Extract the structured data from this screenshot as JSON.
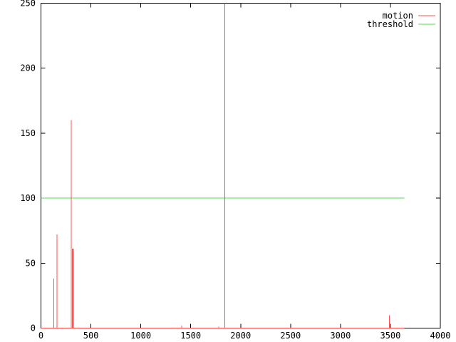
{
  "window": {
    "background": "#ffffff"
  },
  "colors": {
    "motion_red": "#ff5050",
    "threshold_green": "#4fdf4f",
    "axis_black": "#000000",
    "background": "#ffffff"
  },
  "legend": {
    "position": "top-right-inside",
    "items": [
      {
        "label": "motion",
        "color": "#ff5050"
      },
      {
        "label": "threshold",
        "color": "#4fdf4f"
      }
    ]
  },
  "chart_data": {
    "type": "line",
    "title": "",
    "xlabel": "",
    "ylabel": "",
    "xlim": [
      0,
      4000
    ],
    "ylim": [
      0,
      250
    ],
    "x_ticks": [
      0,
      500,
      1000,
      1500,
      2000,
      2500,
      3000,
      3500,
      4000
    ],
    "x_tick_labels": [
      "0",
      "500",
      "1000",
      "1500",
      "2000",
      "2500",
      "3000",
      "3500",
      "4000"
    ],
    "y_ticks": [
      0,
      50,
      100,
      150,
      200,
      250
    ],
    "y_tick_labels": [
      "0",
      "50",
      "100",
      "150",
      "200",
      "250"
    ],
    "grid": false,
    "tick_style": "inward-mirrored-on-all-borders",
    "series": [
      {
        "name": "motion",
        "color": "#ff5050",
        "style": "impulse spikes rising from a zero baseline",
        "baseline_y": 0,
        "x_extent": [
          0,
          3640
        ],
        "spikes": [
          {
            "x": 130,
            "y": 38
          },
          {
            "x": 160,
            "y": 72
          },
          {
            "x": 305,
            "y": 160
          },
          {
            "x": 318,
            "y": 61,
            "thick": true
          },
          {
            "x": 1410,
            "y": 2
          },
          {
            "x": 1780,
            "y": 1
          },
          {
            "x": 1840,
            "y": 250,
            "clipped": true
          },
          {
            "x": 3490,
            "y": 10
          }
        ]
      },
      {
        "name": "threshold",
        "color": "#4fdf4f",
        "style": "horizontal line",
        "value": 100,
        "x_extent": [
          0,
          3640
        ]
      }
    ]
  }
}
